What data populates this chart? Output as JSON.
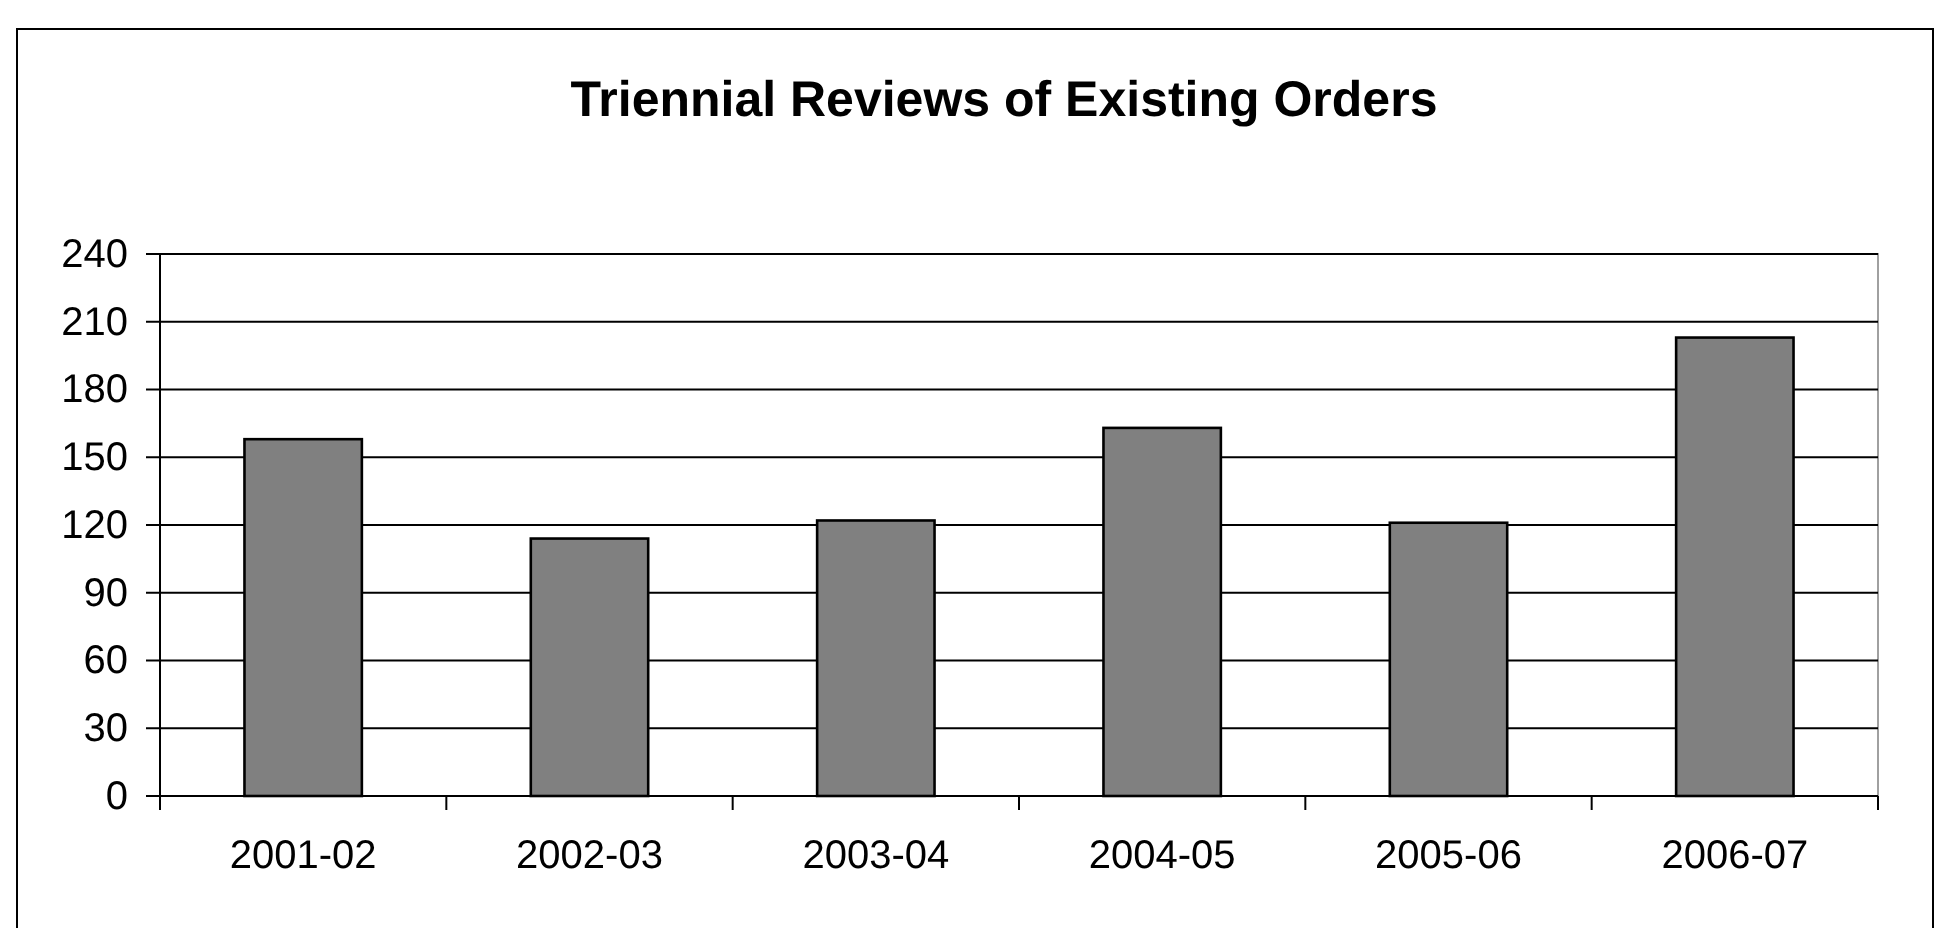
{
  "chart_data": {
    "type": "bar",
    "title": "Triennial Reviews of Existing Orders",
    "categories": [
      "2001-02",
      "2002-03",
      "2003-04",
      "2004-05",
      "2005-06",
      "2006-07"
    ],
    "values": [
      158,
      114,
      122,
      163,
      121,
      203
    ],
    "color": "#808080",
    "ylim": [
      0,
      240
    ],
    "yticks": [
      0,
      30,
      60,
      90,
      120,
      150,
      180,
      210,
      240
    ],
    "grid": "y"
  }
}
